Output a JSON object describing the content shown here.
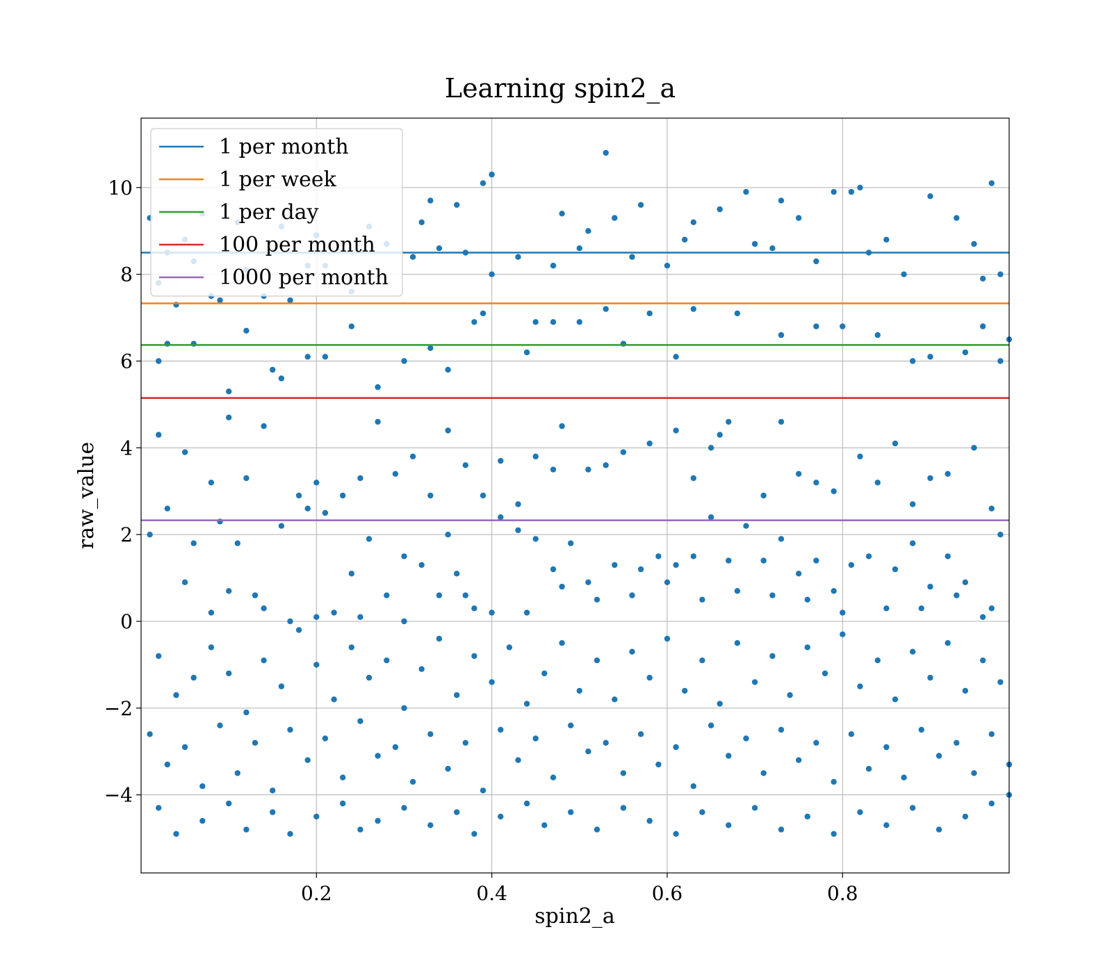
{
  "chart_data": {
    "type": "scatter",
    "title": "Learning spin2_a",
    "xlabel": "spin2_a",
    "ylabel": "raw_value",
    "xlim": [
      0.0,
      0.99
    ],
    "ylim": [
      -5.8,
      11.6
    ],
    "xticks": [
      0.2,
      0.4,
      0.6,
      0.8
    ],
    "yticks": [
      -4,
      -2,
      0,
      2,
      4,
      6,
      8,
      10
    ],
    "xtick_labels": [
      "0.2",
      "0.4",
      "0.6",
      "0.8"
    ],
    "ytick_labels": [
      "−4",
      "−2",
      "0",
      "2",
      "4",
      "6",
      "8",
      "10"
    ],
    "grid": true,
    "legend_position": "top-left",
    "point_color": "#1f77b4",
    "hlines": [
      {
        "name": "1 per month",
        "y": 8.5,
        "color": "#1f77b4"
      },
      {
        "name": "1 per week",
        "y": 7.33,
        "color": "#ff7f0e"
      },
      {
        "name": "1 per day",
        "y": 6.37,
        "color": "#2ca02c"
      },
      {
        "name": "100 per month",
        "y": 5.15,
        "color": "#d62728"
      },
      {
        "name": "1000 per month",
        "y": 2.33,
        "color": "#9467bd"
      }
    ],
    "points": [
      [
        0.01,
        9.3
      ],
      [
        0.02,
        7.8
      ],
      [
        0.03,
        8.5
      ],
      [
        0.04,
        7.3
      ],
      [
        0.05,
        8.8
      ],
      [
        0.06,
        8.3
      ],
      [
        0.07,
        9.4
      ],
      [
        0.08,
        7.5
      ],
      [
        0.09,
        7.4
      ],
      [
        0.11,
        9.2
      ],
      [
        0.12,
        8.1
      ],
      [
        0.14,
        7.5
      ],
      [
        0.16,
        9.1
      ],
      [
        0.17,
        7.4
      ],
      [
        0.19,
        8.2
      ],
      [
        0.2,
        8.9
      ],
      [
        0.21,
        8.2
      ],
      [
        0.24,
        7.6
      ],
      [
        0.26,
        9.1
      ],
      [
        0.28,
        8.7
      ],
      [
        0.31,
        8.4
      ],
      [
        0.32,
        9.2
      ],
      [
        0.33,
        9.7
      ],
      [
        0.34,
        8.6
      ],
      [
        0.36,
        9.6
      ],
      [
        0.37,
        8.5
      ],
      [
        0.39,
        10.1
      ],
      [
        0.4,
        10.3
      ],
      [
        0.4,
        8.0
      ],
      [
        0.43,
        8.4
      ],
      [
        0.47,
        8.2
      ],
      [
        0.48,
        9.4
      ],
      [
        0.5,
        8.6
      ],
      [
        0.51,
        9.0
      ],
      [
        0.53,
        10.8
      ],
      [
        0.54,
        9.3
      ],
      [
        0.56,
        8.4
      ],
      [
        0.57,
        9.6
      ],
      [
        0.6,
        8.2
      ],
      [
        0.62,
        8.8
      ],
      [
        0.63,
        9.2
      ],
      [
        0.66,
        9.5
      ],
      [
        0.69,
        9.9
      ],
      [
        0.7,
        8.7
      ],
      [
        0.72,
        8.6
      ],
      [
        0.73,
        9.7
      ],
      [
        0.75,
        9.3
      ],
      [
        0.77,
        8.3
      ],
      [
        0.79,
        9.9
      ],
      [
        0.81,
        9.9
      ],
      [
        0.82,
        10.0
      ],
      [
        0.83,
        8.5
      ],
      [
        0.85,
        8.8
      ],
      [
        0.87,
        8.0
      ],
      [
        0.9,
        9.8
      ],
      [
        0.93,
        9.3
      ],
      [
        0.95,
        8.7
      ],
      [
        0.96,
        7.9
      ],
      [
        0.97,
        10.1
      ],
      [
        0.98,
        8.0
      ],
      [
        0.02,
        6.0
      ],
      [
        0.03,
        6.4
      ],
      [
        0.06,
        6.4
      ],
      [
        0.1,
        5.3
      ],
      [
        0.12,
        6.7
      ],
      [
        0.15,
        5.8
      ],
      [
        0.16,
        5.6
      ],
      [
        0.19,
        6.1
      ],
      [
        0.21,
        6.1
      ],
      [
        0.24,
        6.8
      ],
      [
        0.27,
        5.4
      ],
      [
        0.3,
        6.0
      ],
      [
        0.33,
        6.3
      ],
      [
        0.35,
        5.8
      ],
      [
        0.38,
        6.9
      ],
      [
        0.39,
        7.1
      ],
      [
        0.44,
        6.2
      ],
      [
        0.45,
        6.9
      ],
      [
        0.47,
        6.9
      ],
      [
        0.5,
        6.9
      ],
      [
        0.53,
        7.2
      ],
      [
        0.55,
        6.4
      ],
      [
        0.58,
        7.1
      ],
      [
        0.61,
        6.1
      ],
      [
        0.63,
        7.2
      ],
      [
        0.68,
        7.1
      ],
      [
        0.73,
        6.6
      ],
      [
        0.77,
        6.8
      ],
      [
        0.8,
        6.8
      ],
      [
        0.84,
        6.6
      ],
      [
        0.88,
        6.0
      ],
      [
        0.9,
        6.1
      ],
      [
        0.94,
        6.2
      ],
      [
        0.96,
        6.8
      ],
      [
        0.98,
        6.0
      ],
      [
        0.99,
        6.5
      ],
      [
        0.02,
        4.3
      ],
      [
        0.05,
        3.9
      ],
      [
        0.08,
        3.2
      ],
      [
        0.1,
        4.7
      ],
      [
        0.12,
        3.3
      ],
      [
        0.14,
        4.5
      ],
      [
        0.18,
        2.9
      ],
      [
        0.2,
        3.2
      ],
      [
        0.23,
        2.9
      ],
      [
        0.25,
        3.3
      ],
      [
        0.27,
        4.6
      ],
      [
        0.29,
        3.4
      ],
      [
        0.31,
        3.8
      ],
      [
        0.33,
        2.9
      ],
      [
        0.35,
        4.4
      ],
      [
        0.37,
        3.6
      ],
      [
        0.39,
        2.9
      ],
      [
        0.41,
        3.7
      ],
      [
        0.43,
        2.7
      ],
      [
        0.45,
        3.8
      ],
      [
        0.47,
        3.5
      ],
      [
        0.48,
        4.5
      ],
      [
        0.51,
        3.5
      ],
      [
        0.53,
        3.6
      ],
      [
        0.55,
        3.9
      ],
      [
        0.58,
        4.1
      ],
      [
        0.61,
        4.4
      ],
      [
        0.63,
        3.3
      ],
      [
        0.65,
        4.0
      ],
      [
        0.66,
        4.3
      ],
      [
        0.67,
        4.6
      ],
      [
        0.71,
        2.9
      ],
      [
        0.73,
        4.6
      ],
      [
        0.75,
        3.4
      ],
      [
        0.77,
        3.2
      ],
      [
        0.79,
        3.0
      ],
      [
        0.82,
        3.8
      ],
      [
        0.84,
        3.2
      ],
      [
        0.86,
        4.1
      ],
      [
        0.88,
        2.7
      ],
      [
        0.9,
        3.3
      ],
      [
        0.92,
        3.4
      ],
      [
        0.95,
        4.0
      ],
      [
        0.97,
        2.6
      ],
      [
        0.01,
        2.0
      ],
      [
        0.03,
        2.6
      ],
      [
        0.06,
        1.8
      ],
      [
        0.09,
        2.3
      ],
      [
        0.11,
        1.8
      ],
      [
        0.13,
        0.6
      ],
      [
        0.16,
        2.2
      ],
      [
        0.19,
        2.6
      ],
      [
        0.21,
        2.5
      ],
      [
        0.24,
        1.1
      ],
      [
        0.26,
        1.9
      ],
      [
        0.28,
        0.6
      ],
      [
        0.3,
        1.5
      ],
      [
        0.32,
        1.3
      ],
      [
        0.35,
        2.0
      ],
      [
        0.36,
        1.1
      ],
      [
        0.38,
        0.3
      ],
      [
        0.41,
        2.4
      ],
      [
        0.43,
        2.1
      ],
      [
        0.45,
        1.9
      ],
      [
        0.47,
        1.2
      ],
      [
        0.49,
        1.8
      ],
      [
        0.52,
        0.5
      ],
      [
        0.54,
        1.3
      ],
      [
        0.57,
        1.2
      ],
      [
        0.59,
        1.5
      ],
      [
        0.61,
        1.3
      ],
      [
        0.63,
        1.5
      ],
      [
        0.65,
        2.4
      ],
      [
        0.67,
        1.4
      ],
      [
        0.69,
        2.2
      ],
      [
        0.71,
        1.4
      ],
      [
        0.73,
        1.9
      ],
      [
        0.75,
        1.1
      ],
      [
        0.77,
        1.4
      ],
      [
        0.79,
        0.7
      ],
      [
        0.81,
        1.3
      ],
      [
        0.83,
        1.5
      ],
      [
        0.86,
        1.2
      ],
      [
        0.88,
        1.8
      ],
      [
        0.9,
        0.8
      ],
      [
        0.92,
        1.5
      ],
      [
        0.94,
        0.9
      ],
      [
        0.96,
        0.1
      ],
      [
        0.98,
        2.0
      ],
      [
        0.05,
        0.9
      ],
      [
        0.08,
        0.2
      ],
      [
        0.1,
        0.7
      ],
      [
        0.14,
        0.3
      ],
      [
        0.17,
        0.0
      ],
      [
        0.2,
        0.1
      ],
      [
        0.22,
        0.2
      ],
      [
        0.25,
        0.1
      ],
      [
        0.3,
        0.0
      ],
      [
        0.34,
        0.6
      ],
      [
        0.37,
        0.6
      ],
      [
        0.4,
        0.2
      ],
      [
        0.44,
        0.2
      ],
      [
        0.48,
        0.8
      ],
      [
        0.51,
        0.9
      ],
      [
        0.56,
        0.6
      ],
      [
        0.6,
        0.9
      ],
      [
        0.64,
        0.5
      ],
      [
        0.68,
        0.7
      ],
      [
        0.72,
        0.6
      ],
      [
        0.76,
        0.5
      ],
      [
        0.8,
        0.2
      ],
      [
        0.85,
        0.3
      ],
      [
        0.89,
        0.3
      ],
      [
        0.93,
        0.6
      ],
      [
        0.97,
        0.3
      ],
      [
        0.02,
        -0.8
      ],
      [
        0.04,
        -1.7
      ],
      [
        0.06,
        -1.3
      ],
      [
        0.08,
        -0.6
      ],
      [
        0.1,
        -1.2
      ],
      [
        0.12,
        -2.1
      ],
      [
        0.14,
        -0.9
      ],
      [
        0.16,
        -1.5
      ],
      [
        0.18,
        -0.2
      ],
      [
        0.2,
        -1.0
      ],
      [
        0.22,
        -1.8
      ],
      [
        0.24,
        -0.6
      ],
      [
        0.26,
        -1.3
      ],
      [
        0.28,
        -0.9
      ],
      [
        0.3,
        -2.0
      ],
      [
        0.32,
        -1.1
      ],
      [
        0.34,
        -0.4
      ],
      [
        0.36,
        -1.7
      ],
      [
        0.38,
        -0.8
      ],
      [
        0.4,
        -1.4
      ],
      [
        0.42,
        -0.6
      ],
      [
        0.44,
        -1.9
      ],
      [
        0.46,
        -1.2
      ],
      [
        0.48,
        -0.5
      ],
      [
        0.5,
        -1.6
      ],
      [
        0.52,
        -0.9
      ],
      [
        0.54,
        -1.8
      ],
      [
        0.56,
        -0.7
      ],
      [
        0.58,
        -1.3
      ],
      [
        0.6,
        -0.4
      ],
      [
        0.62,
        -1.6
      ],
      [
        0.64,
        -0.9
      ],
      [
        0.66,
        -1.9
      ],
      [
        0.68,
        -0.5
      ],
      [
        0.7,
        -1.4
      ],
      [
        0.72,
        -0.8
      ],
      [
        0.74,
        -1.7
      ],
      [
        0.76,
        -0.6
      ],
      [
        0.78,
        -1.2
      ],
      [
        0.8,
        -0.3
      ],
      [
        0.82,
        -1.5
      ],
      [
        0.84,
        -0.9
      ],
      [
        0.86,
        -1.8
      ],
      [
        0.88,
        -0.7
      ],
      [
        0.9,
        -1.3
      ],
      [
        0.92,
        -0.5
      ],
      [
        0.94,
        -1.6
      ],
      [
        0.96,
        -0.9
      ],
      [
        0.98,
        -1.4
      ],
      [
        0.01,
        -2.6
      ],
      [
        0.03,
        -3.3
      ],
      [
        0.05,
        -2.9
      ],
      [
        0.07,
        -3.8
      ],
      [
        0.09,
        -2.4
      ],
      [
        0.11,
        -3.5
      ],
      [
        0.13,
        -2.8
      ],
      [
        0.15,
        -3.9
      ],
      [
        0.17,
        -2.5
      ],
      [
        0.19,
        -3.2
      ],
      [
        0.21,
        -2.7
      ],
      [
        0.23,
        -3.6
      ],
      [
        0.25,
        -2.3
      ],
      [
        0.27,
        -3.1
      ],
      [
        0.29,
        -2.9
      ],
      [
        0.31,
        -3.7
      ],
      [
        0.33,
        -2.6
      ],
      [
        0.35,
        -3.4
      ],
      [
        0.37,
        -2.8
      ],
      [
        0.39,
        -3.9
      ],
      [
        0.41,
        -2.5
      ],
      [
        0.43,
        -3.2
      ],
      [
        0.45,
        -2.7
      ],
      [
        0.47,
        -3.6
      ],
      [
        0.49,
        -2.4
      ],
      [
        0.51,
        -3.0
      ],
      [
        0.53,
        -2.8
      ],
      [
        0.55,
        -3.5
      ],
      [
        0.57,
        -2.6
      ],
      [
        0.59,
        -3.3
      ],
      [
        0.61,
        -2.9
      ],
      [
        0.63,
        -3.8
      ],
      [
        0.65,
        -2.4
      ],
      [
        0.67,
        -3.1
      ],
      [
        0.69,
        -2.7
      ],
      [
        0.71,
        -3.5
      ],
      [
        0.73,
        -2.5
      ],
      [
        0.75,
        -3.2
      ],
      [
        0.77,
        -2.8
      ],
      [
        0.79,
        -3.7
      ],
      [
        0.81,
        -2.6
      ],
      [
        0.83,
        -3.4
      ],
      [
        0.85,
        -2.9
      ],
      [
        0.87,
        -3.6
      ],
      [
        0.89,
        -2.5
      ],
      [
        0.91,
        -3.1
      ],
      [
        0.93,
        -2.8
      ],
      [
        0.95,
        -3.5
      ],
      [
        0.97,
        -2.6
      ],
      [
        0.99,
        -3.3
      ],
      [
        0.02,
        -4.3
      ],
      [
        0.04,
        -4.9
      ],
      [
        0.07,
        -4.6
      ],
      [
        0.1,
        -4.2
      ],
      [
        0.12,
        -4.8
      ],
      [
        0.15,
        -4.4
      ],
      [
        0.17,
        -4.9
      ],
      [
        0.2,
        -4.5
      ],
      [
        0.23,
        -4.2
      ],
      [
        0.25,
        -4.8
      ],
      [
        0.27,
        -4.6
      ],
      [
        0.3,
        -4.3
      ],
      [
        0.33,
        -4.7
      ],
      [
        0.36,
        -4.4
      ],
      [
        0.38,
        -4.9
      ],
      [
        0.41,
        -4.5
      ],
      [
        0.44,
        -4.2
      ],
      [
        0.46,
        -4.7
      ],
      [
        0.49,
        -4.4
      ],
      [
        0.52,
        -4.8
      ],
      [
        0.55,
        -4.3
      ],
      [
        0.58,
        -4.6
      ],
      [
        0.61,
        -4.9
      ],
      [
        0.64,
        -4.4
      ],
      [
        0.67,
        -4.7
      ],
      [
        0.7,
        -4.3
      ],
      [
        0.73,
        -4.8
      ],
      [
        0.76,
        -4.5
      ],
      [
        0.79,
        -4.9
      ],
      [
        0.82,
        -4.4
      ],
      [
        0.85,
        -4.7
      ],
      [
        0.88,
        -4.3
      ],
      [
        0.91,
        -4.8
      ],
      [
        0.94,
        -4.5
      ],
      [
        0.97,
        -4.2
      ],
      [
        0.99,
        -4.0
      ]
    ]
  }
}
